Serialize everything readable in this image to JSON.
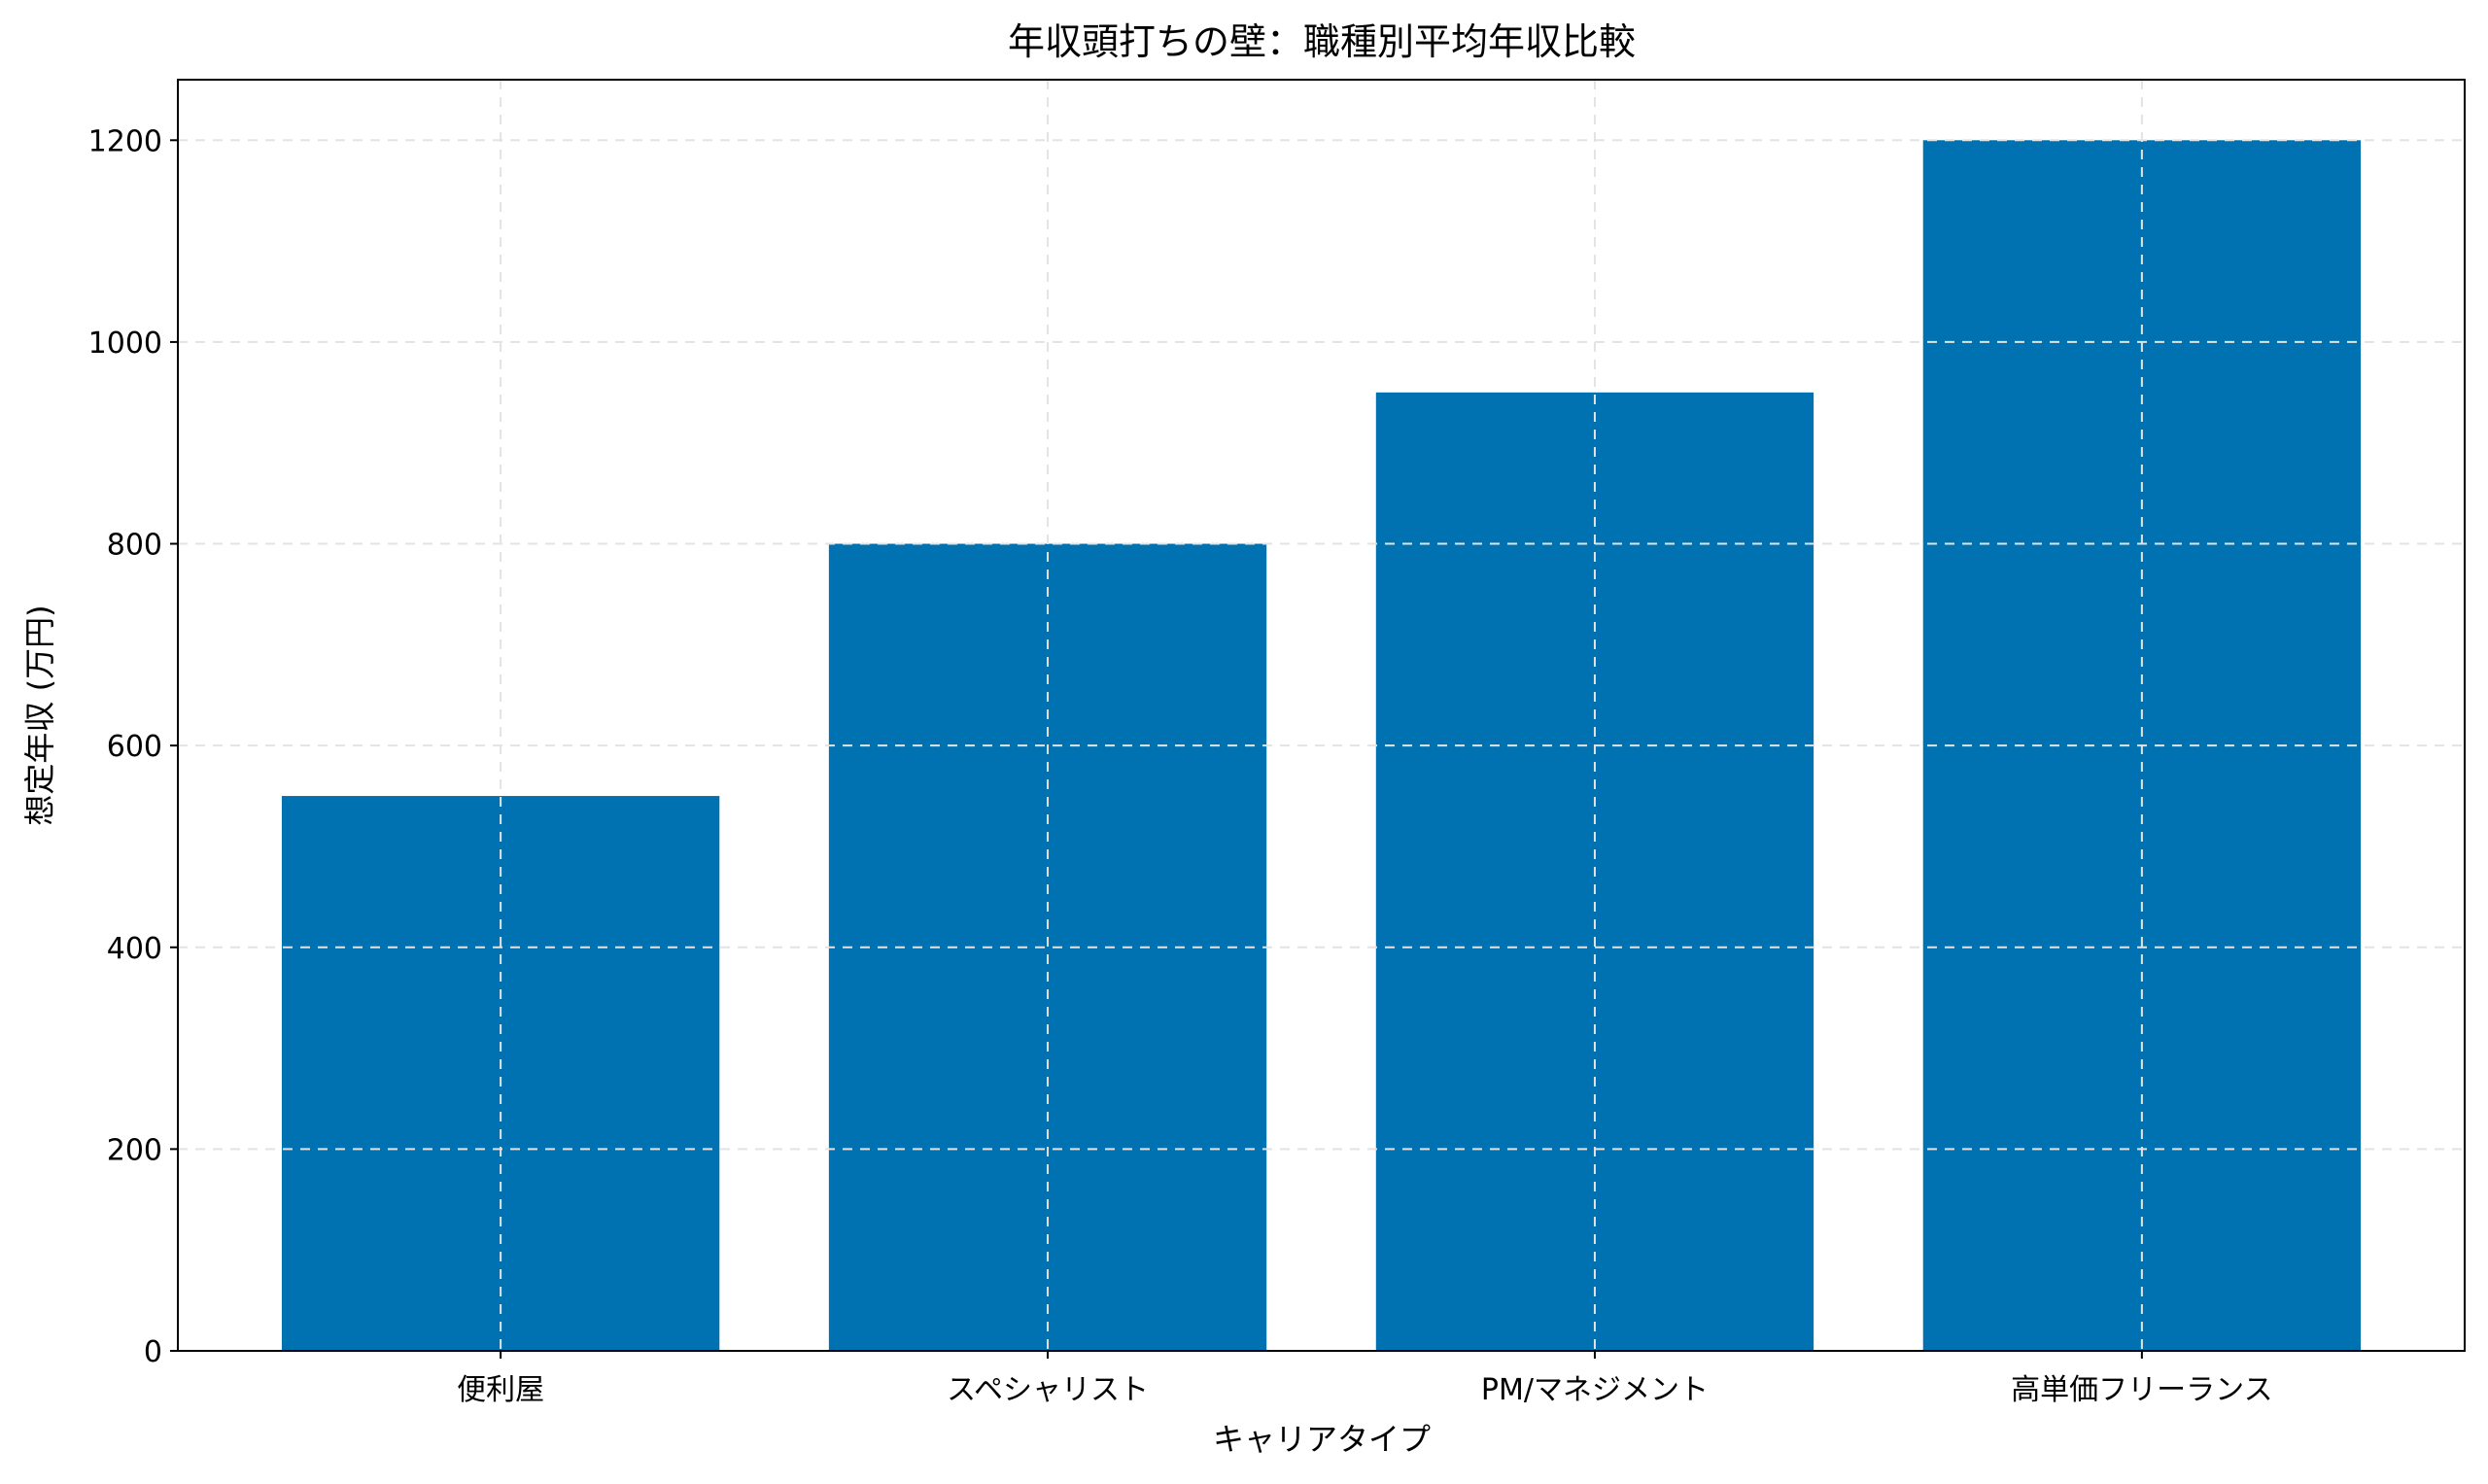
{
  "chart_data": {
    "type": "bar",
    "title": "年収頭打ちの壁：職種別平均年収比較",
    "xlabel": "キャリアタイプ",
    "ylabel": "想定年収 (万円)",
    "categories": [
      "便利屋",
      "スペシャリスト",
      "PM/マネジメント",
      "高単価フリーランス"
    ],
    "values": [
      550,
      800,
      950,
      1200
    ],
    "ylim": [
      0,
      1260
    ],
    "yticks": [
      0,
      200,
      400,
      600,
      800,
      1000,
      1200
    ],
    "grid": true,
    "bar_color": "#0072B2"
  }
}
